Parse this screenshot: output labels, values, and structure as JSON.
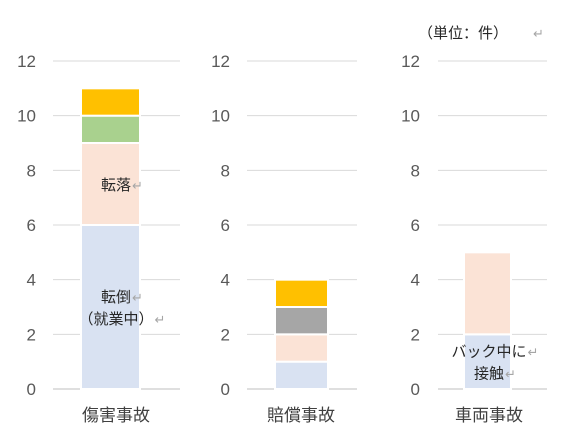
{
  "unit_label": "（単位：件）",
  "colors": {
    "blue": "#d9e2f2",
    "peach": "#fbe3d6",
    "gray": "#a6a6a6",
    "green": "#a9d18e",
    "gold": "#ffc000",
    "grid": "#d9d9d9",
    "axis": "#bfbfbf"
  },
  "chart_data": [
    {
      "type": "bar",
      "stacked": true,
      "category": "傷害事故",
      "ylim": [
        0,
        12
      ],
      "yticks": [
        0,
        2,
        4,
        6,
        8,
        10,
        12
      ],
      "grid": true,
      "segments": [
        {
          "value": 6,
          "color": "blue",
          "label": [
            "転倒",
            "（就業中）"
          ]
        },
        {
          "value": 3,
          "color": "peach",
          "label": [
            "転落"
          ]
        },
        {
          "value": 1,
          "color": "green",
          "label": []
        },
        {
          "value": 1,
          "color": "gold",
          "label": []
        }
      ]
    },
    {
      "type": "bar",
      "stacked": true,
      "category": "賠償事故",
      "ylim": [
        0,
        12
      ],
      "yticks": [
        0,
        2,
        4,
        6,
        8,
        10,
        12
      ],
      "grid": true,
      "segments": [
        {
          "value": 1,
          "color": "blue",
          "label": []
        },
        {
          "value": 1,
          "color": "peach",
          "label": []
        },
        {
          "value": 1,
          "color": "gray",
          "label": []
        },
        {
          "value": 1,
          "color": "gold",
          "label": []
        }
      ]
    },
    {
      "type": "bar",
      "stacked": true,
      "category": "車両事故",
      "ylim": [
        0,
        12
      ],
      "yticks": [
        0,
        2,
        4,
        6,
        8,
        10,
        12
      ],
      "grid": true,
      "segments": [
        {
          "value": 2,
          "color": "blue",
          "label": [
            "バック中に",
            "接触"
          ]
        },
        {
          "value": 3,
          "color": "peach",
          "label": []
        }
      ]
    }
  ]
}
